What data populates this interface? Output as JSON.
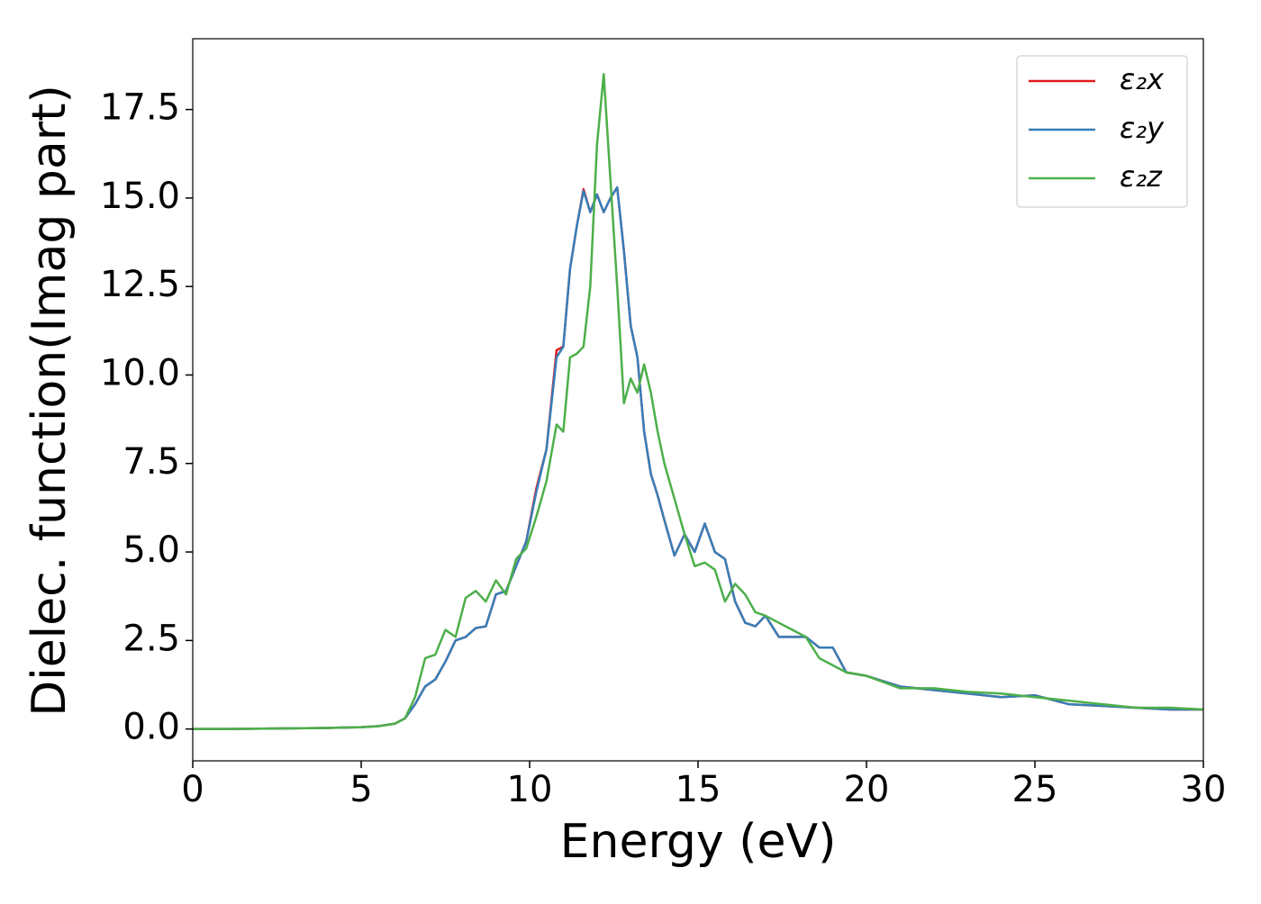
{
  "chart_data": {
    "type": "line",
    "xlabel": "Energy (eV)",
    "ylabel": "Dielec. function(Imag part)",
    "x": [
      0,
      1,
      2,
      3,
      4,
      5,
      5.5,
      6,
      6.3,
      6.6,
      6.9,
      7.2,
      7.5,
      7.8,
      8.1,
      8.4,
      8.7,
      9.0,
      9.3,
      9.6,
      9.9,
      10.2,
      10.5,
      10.8,
      11.0,
      11.2,
      11.4,
      11.6,
      11.8,
      12.0,
      12.2,
      12.4,
      12.6,
      12.8,
      13.0,
      13.2,
      13.4,
      13.6,
      13.8,
      14.0,
      14.3,
      14.6,
      14.9,
      15.2,
      15.5,
      15.8,
      16.1,
      16.4,
      16.7,
      17.0,
      17.4,
      17.8,
      18.2,
      18.6,
      19.0,
      19.4,
      20,
      21,
      22,
      23,
      24,
      25,
      26,
      27,
      28,
      29,
      30
    ],
    "series": [
      {
        "name": "ε₂x",
        "color": "#e41a1c",
        "values": [
          0,
          0,
          0.01,
          0.02,
          0.03,
          0.05,
          0.08,
          0.15,
          0.3,
          0.7,
          1.2,
          1.4,
          1.9,
          2.5,
          2.6,
          2.85,
          2.9,
          3.8,
          3.9,
          4.6,
          5.3,
          6.8,
          7.9,
          10.7,
          10.8,
          13.0,
          14.2,
          15.25,
          14.6,
          15.1,
          14.6,
          15.0,
          15.3,
          13.5,
          11.4,
          10.5,
          8.4,
          7.2,
          6.6,
          5.9,
          4.9,
          5.5,
          5.0,
          5.8,
          5.0,
          4.8,
          3.6,
          3.0,
          2.9,
          3.2,
          2.6,
          2.6,
          2.6,
          2.3,
          2.3,
          1.6,
          1.5,
          1.2,
          1.1,
          1.0,
          0.9,
          0.95,
          0.7,
          0.65,
          0.6,
          0.55,
          0.55
        ]
      },
      {
        "name": "ε₂y",
        "color": "#377eb8",
        "values": [
          0,
          0,
          0.01,
          0.02,
          0.03,
          0.05,
          0.08,
          0.15,
          0.3,
          0.7,
          1.2,
          1.4,
          1.9,
          2.5,
          2.6,
          2.85,
          2.9,
          3.8,
          3.9,
          4.6,
          5.3,
          6.7,
          7.9,
          10.5,
          10.8,
          13.0,
          14.2,
          15.2,
          14.6,
          15.1,
          14.6,
          15.0,
          15.3,
          13.5,
          11.4,
          10.5,
          8.4,
          7.2,
          6.6,
          5.9,
          4.9,
          5.5,
          5.0,
          5.8,
          5.0,
          4.8,
          3.6,
          3.0,
          2.9,
          3.2,
          2.6,
          2.6,
          2.6,
          2.3,
          2.3,
          1.6,
          1.5,
          1.2,
          1.1,
          1.0,
          0.9,
          0.95,
          0.7,
          0.65,
          0.6,
          0.55,
          0.55
        ]
      },
      {
        "name": "ε₂z",
        "color": "#4daf4a",
        "values": [
          0,
          0,
          0.01,
          0.02,
          0.03,
          0.05,
          0.08,
          0.15,
          0.3,
          0.9,
          2.0,
          2.1,
          2.8,
          2.6,
          3.7,
          3.9,
          3.6,
          4.2,
          3.8,
          4.8,
          5.1,
          6.0,
          7.0,
          8.6,
          8.4,
          10.5,
          10.6,
          10.8,
          12.5,
          16.5,
          18.5,
          15.5,
          12.5,
          9.2,
          9.9,
          9.5,
          10.3,
          9.5,
          8.4,
          7.5,
          6.5,
          5.5,
          4.6,
          4.7,
          4.5,
          3.6,
          4.1,
          3.8,
          3.3,
          3.2,
          3.0,
          2.8,
          2.6,
          2.0,
          1.8,
          1.6,
          1.5,
          1.15,
          1.15,
          1.05,
          1.0,
          0.9,
          0.8,
          0.7,
          0.6,
          0.6,
          0.55
        ]
      }
    ],
    "xlim": [
      0,
      30
    ],
    "xticks": [
      0,
      5,
      10,
      15,
      20,
      25,
      30
    ],
    "ylim": [
      -0.9,
      19.5
    ],
    "yticks": [
      {
        "value": 0,
        "label": "0.0"
      },
      2.5,
      {
        "value": 5,
        "label": "5.0"
      },
      7.5,
      {
        "value": 10,
        "label": "10.0"
      },
      12.5,
      {
        "value": 15,
        "label": "15.0"
      },
      17.5
    ],
    "legend": "upper right",
    "grid": false
  }
}
